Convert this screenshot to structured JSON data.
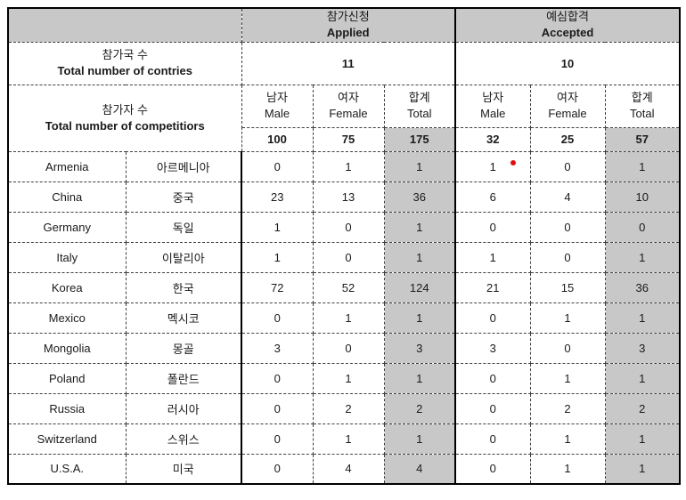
{
  "header": {
    "applied": {
      "ko": "참가신청",
      "en": "Applied"
    },
    "accepted": {
      "ko": "예심합격",
      "en": "Accepted"
    }
  },
  "summary": {
    "countries": {
      "label_ko": "참가국 수",
      "label_en": "Total number of contries",
      "applied_value": "11",
      "accepted_value": "10"
    },
    "competitors": {
      "label_ko": "참가자 수",
      "label_en": "Total number of competitiors"
    }
  },
  "columns": {
    "male": {
      "ko": "남자",
      "en": "Male"
    },
    "female": {
      "ko": "여자",
      "en": "Female"
    },
    "total": {
      "ko": "합계",
      "en": "Total"
    }
  },
  "totals": {
    "values": [
      "100",
      "75",
      "175",
      "32",
      "25",
      "57"
    ]
  },
  "countries": [
    {
      "en": "Armenia",
      "ko": "아르메니아",
      "values": [
        "0",
        "1",
        "1",
        "1",
        "0",
        "1"
      ],
      "marker": "red-dot"
    },
    {
      "en": "China",
      "ko": "중국",
      "values": [
        "23",
        "13",
        "36",
        "6",
        "4",
        "10"
      ]
    },
    {
      "en": "Germany",
      "ko": "독일",
      "values": [
        "1",
        "0",
        "1",
        "0",
        "0",
        "0"
      ]
    },
    {
      "en": "Italy",
      "ko": "이탈리아",
      "values": [
        "1",
        "0",
        "1",
        "1",
        "0",
        "1"
      ]
    },
    {
      "en": "Korea",
      "ko": "한국",
      "values": [
        "72",
        "52",
        "124",
        "21",
        "15",
        "36"
      ]
    },
    {
      "en": "Mexico",
      "ko": "멕시코",
      "values": [
        "0",
        "1",
        "1",
        "0",
        "1",
        "1"
      ]
    },
    {
      "en": "Mongolia",
      "ko": "몽골",
      "values": [
        "3",
        "0",
        "3",
        "3",
        "0",
        "3"
      ]
    },
    {
      "en": "Poland",
      "ko": "폴란드",
      "values": [
        "0",
        "1",
        "1",
        "0",
        "1",
        "1"
      ]
    },
    {
      "en": "Russia",
      "ko": "러시아",
      "values": [
        "0",
        "2",
        "2",
        "0",
        "2",
        "2"
      ]
    },
    {
      "en": "Switzerland",
      "ko": "스위스",
      "values": [
        "0",
        "1",
        "1",
        "0",
        "1",
        "1"
      ]
    },
    {
      "en": "U.S.A.",
      "ko": "미국",
      "values": [
        "0",
        "4",
        "4",
        "0",
        "1",
        "1"
      ]
    }
  ],
  "colors": {
    "header_fill": "#c8c8c8",
    "total_column_fill": "#c8c8c8",
    "marker_red": "#e01010",
    "border": "#000000"
  }
}
